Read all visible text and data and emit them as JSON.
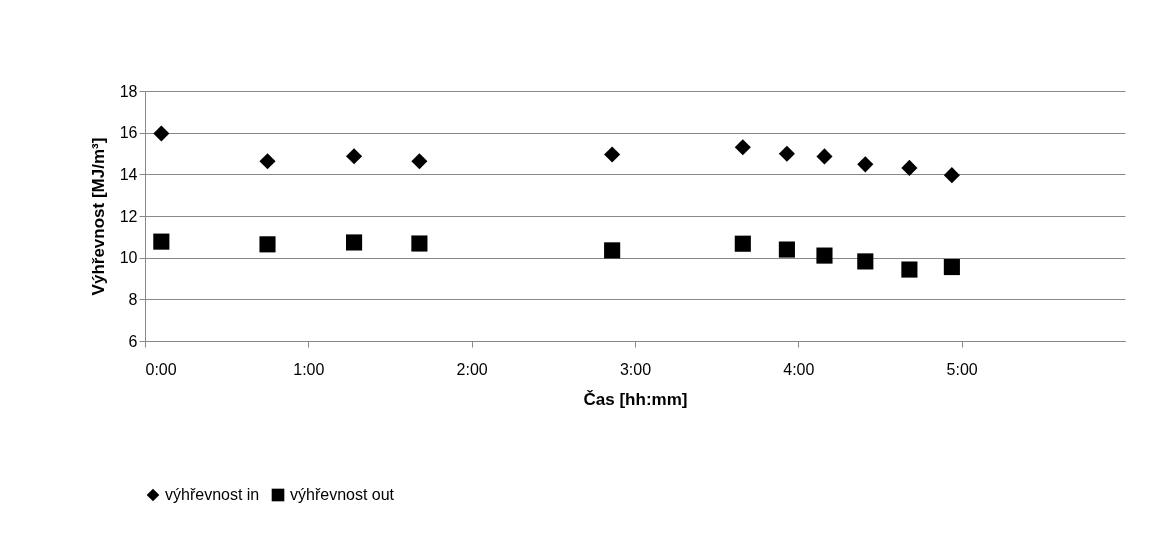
{
  "chart_data": {
    "type": "scatter",
    "xlabel": "Čas [hh:mm]",
    "ylabel": "Výhřevnost [MJ/m³]",
    "xlim": [
      0,
      6
    ],
    "xticks": [
      {
        "value": 0,
        "label": "0:00"
      },
      {
        "value": 1,
        "label": "1:00"
      },
      {
        "value": 2,
        "label": "2:00"
      },
      {
        "value": 3,
        "label": "3:00"
      },
      {
        "value": 4,
        "label": "4:00"
      },
      {
        "value": 5,
        "label": "5:00"
      }
    ],
    "ylim": [
      6,
      18
    ],
    "yticks": [
      6,
      8,
      10,
      12,
      14,
      16,
      18
    ],
    "grid": "y",
    "legend": "bottom",
    "x": [
      0.1,
      0.75,
      1.28,
      1.68,
      2.86,
      3.66,
      3.93,
      4.16,
      4.41,
      4.68,
      4.94
    ],
    "series": [
      {
        "name": "výhřevnost in",
        "color": "#000000",
        "marker": "diamond",
        "values": [
          15.96,
          14.63,
          14.87,
          14.63,
          14.95,
          15.3,
          14.99,
          14.86,
          14.48,
          14.31,
          13.96
        ]
      },
      {
        "name": "výhřevnost out",
        "color": "#000000",
        "marker": "square",
        "values": [
          10.77,
          10.64,
          10.73,
          10.68,
          10.35,
          10.67,
          10.39,
          10.1,
          9.82,
          9.43,
          9.55
        ]
      }
    ]
  }
}
